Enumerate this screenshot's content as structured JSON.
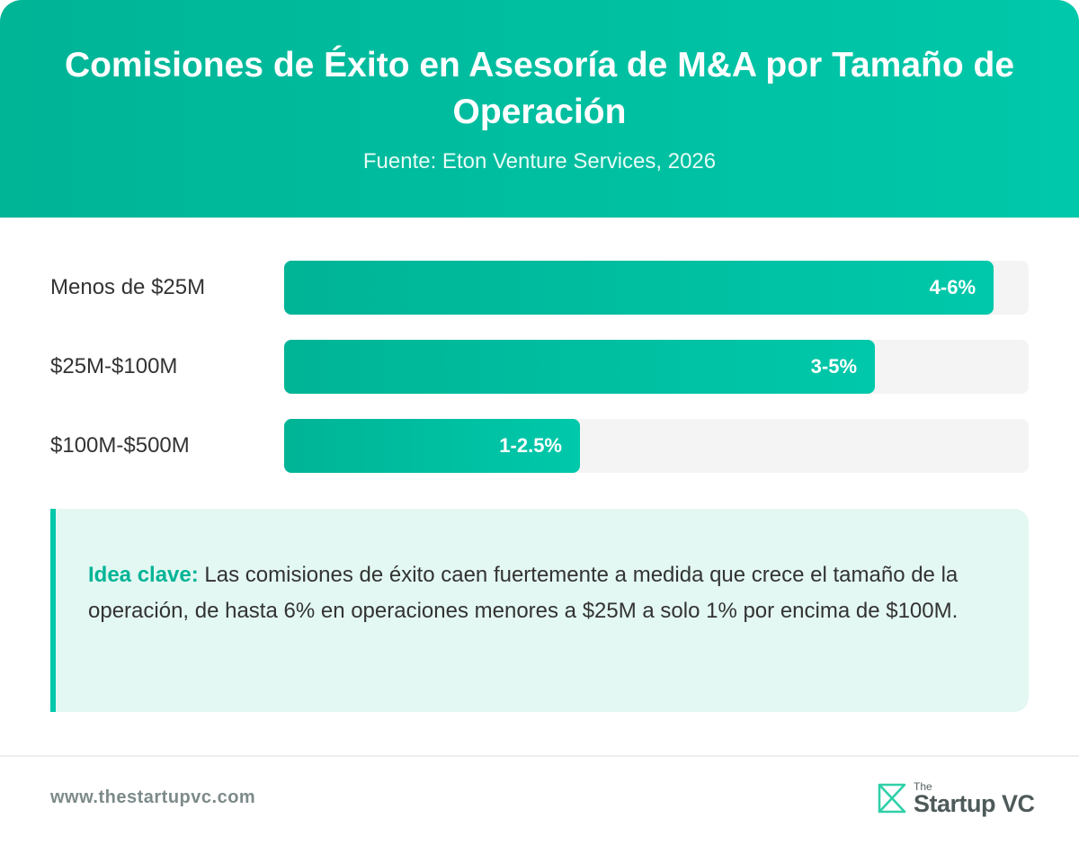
{
  "header": {
    "title": "Comisiones de Éxito en Asesoría de M&A por Tamaño de Operación",
    "subtitle": "Fuente: Eton Venture Services, 2026"
  },
  "chart_data": {
    "type": "bar",
    "orientation": "horizontal",
    "title": "Comisiones de Éxito en Asesoría de M&A por Tamaño de Operación",
    "subtitle": "Fuente: Eton Venture Services, 2026",
    "categories": [
      "Menos de $25M",
      "$25M-$100M",
      "$100M-$500M"
    ],
    "values": [
      6,
      5,
      2.5
    ],
    "value_labels": [
      "4-6%",
      "3-5%",
      "1-2.5%"
    ],
    "xlim": [
      0,
      6.3
    ],
    "xlabel": "",
    "ylabel": "",
    "grid": false,
    "colors": {
      "bar": "#00b496",
      "bar_end": "#00c8aa",
      "track": "#f4f4f4"
    }
  },
  "insight": {
    "label": "Idea clave:",
    "text": "Las comisiones de éxito caen fuertemente a medida que crece el tamaño de la operación, de hasta 6% en operaciones menores a $25M a solo 1% por encima de $100M."
  },
  "footer": {
    "url": "www.thestartupvc.com",
    "logo_the": "The",
    "logo_name": "Startup VC",
    "logo_icon": "startupvc-logo-icon"
  },
  "colors": {
    "accent": "#00b496",
    "accent_light": "#00c8aa",
    "insight_bg": "#e3f8f2",
    "text": "#333333"
  }
}
